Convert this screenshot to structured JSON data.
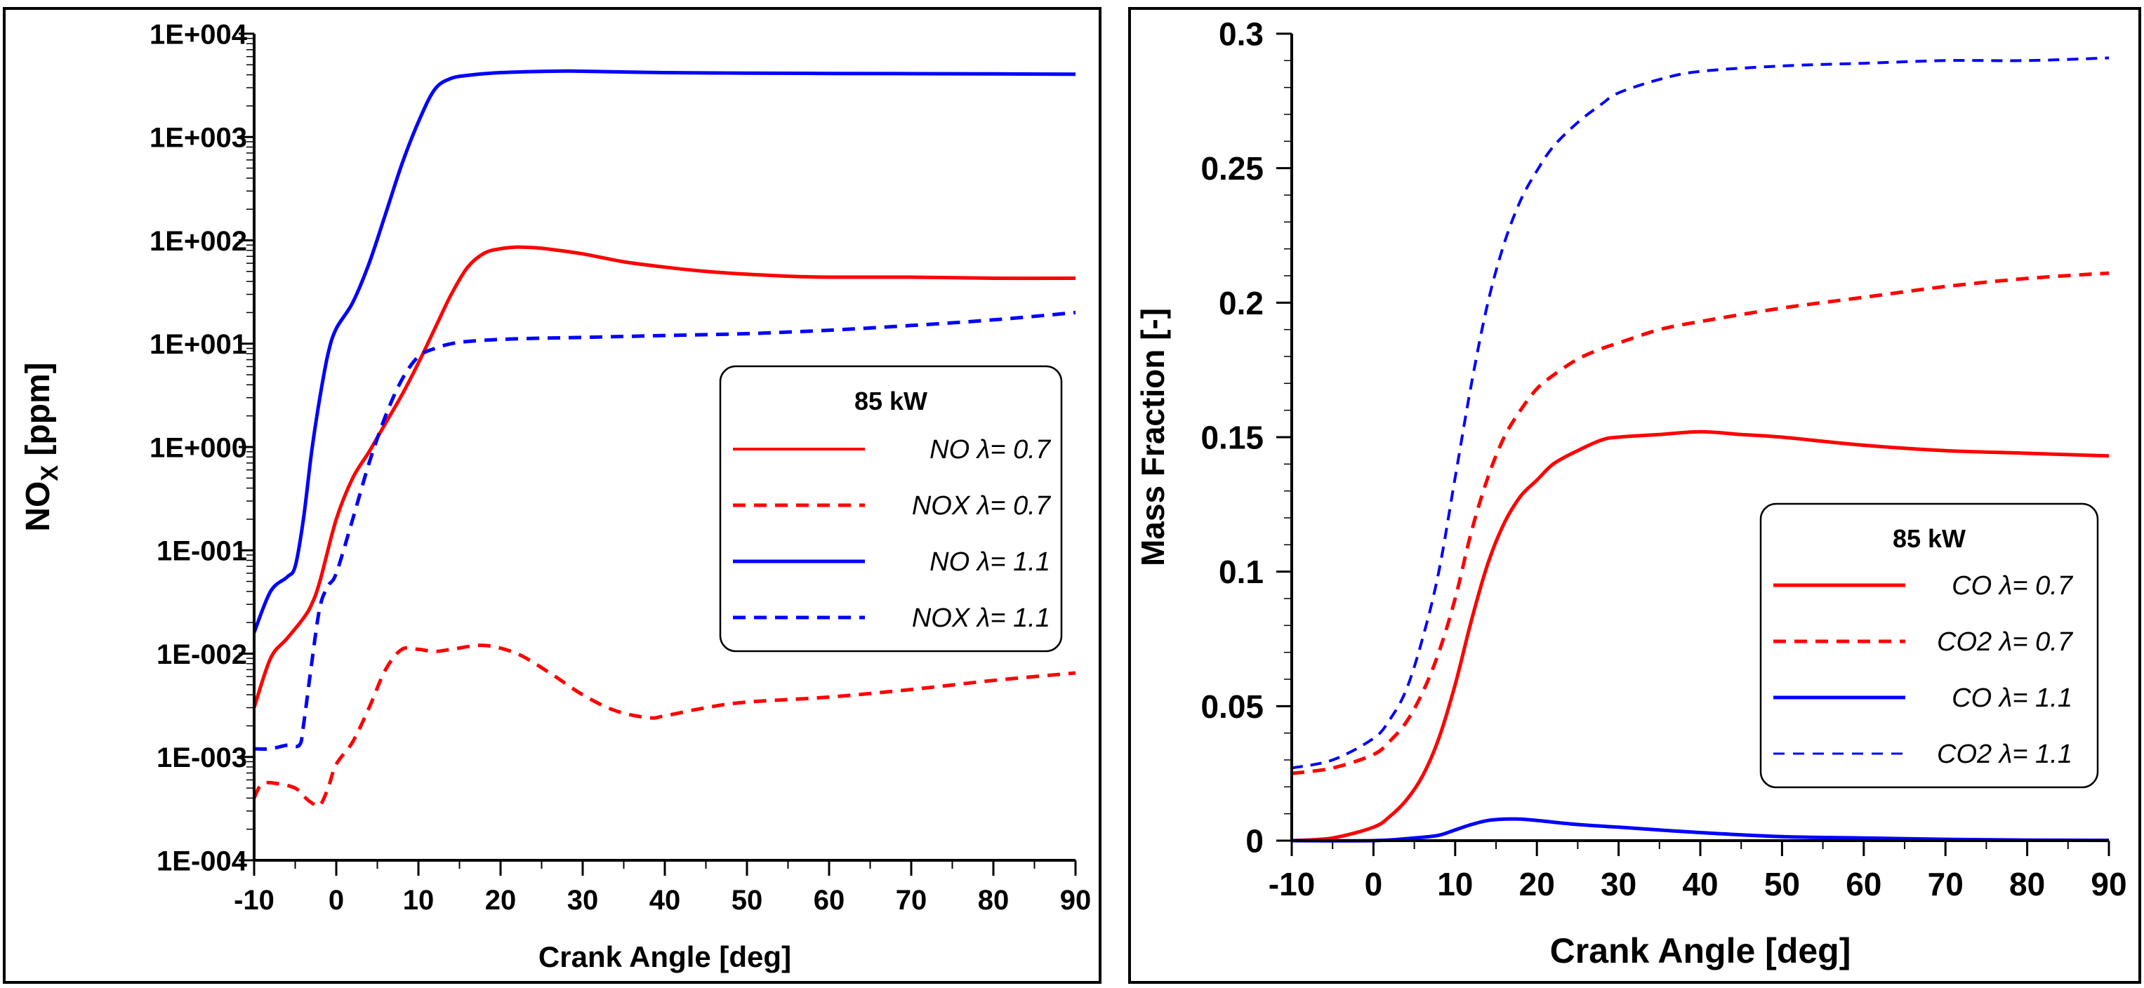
{
  "chart_data": [
    {
      "type": "line",
      "id": "left",
      "xlabel": "Crank Angle [deg]",
      "ylabel_main": "NO",
      "ylabel_sub": "X",
      "ylabel_rest": " [ppm]",
      "yscale": "log",
      "xlim": [
        -10,
        90
      ],
      "ylim": [
        0.0001,
        10000
      ],
      "xticks": [
        -10,
        0,
        10,
        20,
        30,
        40,
        50,
        60,
        70,
        80,
        90
      ],
      "xtick_labels": [
        "-10",
        "0",
        "10",
        "20",
        "30",
        "40",
        "50",
        "60",
        "70",
        "80",
        "90"
      ],
      "yticks": [
        0.0001,
        0.001,
        0.01,
        0.1,
        1,
        10,
        100,
        1000,
        10000
      ],
      "ytick_labels": [
        "1E-004",
        "1E-003",
        "1E-002",
        "1E-001",
        "1E+000",
        "1E+001",
        "1E+002",
        "1E+003",
        "1E+004"
      ],
      "legend": {
        "title": "85 kW",
        "location": "right-middle",
        "entries": [
          "NO λ= 0.7",
          "NOX λ= 0.7",
          "NO λ= 1.1",
          "NOX λ= 1.1"
        ]
      },
      "series": [
        {
          "name": "NO λ= 0.7",
          "color": "#ff0000",
          "style": "solid",
          "x": [
            -10,
            -8,
            -6,
            -4,
            -3,
            -2,
            0,
            2,
            4,
            6,
            8,
            10,
            12,
            14,
            16,
            18,
            20,
            22,
            24,
            26,
            30,
            35,
            40,
            45,
            50,
            55,
            60,
            70,
            80,
            90
          ],
          "y": [
            0.003,
            0.009,
            0.014,
            0.022,
            0.03,
            0.05,
            0.2,
            0.5,
            0.9,
            1.7,
            3.2,
            6.5,
            14,
            30,
            55,
            75,
            83,
            86,
            85,
            82,
            74,
            62,
            55,
            50,
            47,
            45,
            44,
            44,
            43,
            43
          ]
        },
        {
          "name": "NOX λ= 0.7",
          "color": "#ff0000",
          "style": "dashed",
          "x": [
            -10,
            -9,
            -7,
            -5,
            -4,
            -3,
            -2,
            -1,
            0,
            2,
            4,
            6,
            8,
            10,
            12,
            14,
            18,
            22,
            26,
            30,
            34,
            38,
            40,
            45,
            50,
            60,
            70,
            80,
            90
          ],
          "y": [
            0.0004,
            0.00055,
            0.00055,
            0.0005,
            0.00042,
            0.00036,
            0.00034,
            0.0005,
            0.00085,
            0.0014,
            0.003,
            0.007,
            0.011,
            0.011,
            0.0105,
            0.011,
            0.012,
            0.01,
            0.0065,
            0.004,
            0.0028,
            0.0024,
            0.0025,
            0.003,
            0.0034,
            0.0038,
            0.0045,
            0.0055,
            0.0065
          ]
        },
        {
          "name": "NO λ= 1.1",
          "color": "#0000ff",
          "style": "solid",
          "x": [
            -10,
            -8,
            -6,
            -5,
            -4,
            -3,
            -2,
            -1,
            0,
            2,
            4,
            6,
            8,
            10,
            12,
            14,
            16,
            18,
            20,
            24,
            28,
            30,
            40,
            50,
            60,
            70,
            80,
            90
          ],
          "y": [
            0.016,
            0.04,
            0.055,
            0.07,
            0.2,
            0.9,
            3,
            8,
            14,
            25,
            60,
            180,
            550,
            1400,
            2900,
            3700,
            3950,
            4100,
            4200,
            4300,
            4350,
            4330,
            4200,
            4150,
            4120,
            4100,
            4080,
            4050
          ]
        },
        {
          "name": "NOX λ= 1.1",
          "color": "#0000ff",
          "style": "dashed",
          "x": [
            -10,
            -8,
            -6,
            -4.5,
            -4,
            -3,
            -2,
            -1,
            0,
            2,
            4,
            6,
            8,
            10,
            12,
            14,
            16,
            20,
            25,
            30,
            40,
            50,
            60,
            70,
            80,
            90
          ],
          "y": [
            0.0012,
            0.0012,
            0.0013,
            0.0013,
            0.002,
            0.008,
            0.028,
            0.045,
            0.06,
            0.2,
            0.7,
            2,
            4.5,
            7.5,
            9,
            10,
            10.5,
            11,
            11.3,
            11.5,
            12,
            12.5,
            13.5,
            15,
            17,
            20
          ]
        }
      ]
    },
    {
      "type": "line",
      "id": "right",
      "xlabel": "Crank Angle [deg]",
      "ylabel": "Mass Fraction [-]",
      "yscale": "linear",
      "xlim": [
        -10,
        90
      ],
      "ylim": [
        0,
        0.3
      ],
      "xticks": [
        -10,
        0,
        10,
        20,
        30,
        40,
        50,
        60,
        70,
        80,
        90
      ],
      "xtick_labels": [
        "-10",
        "0",
        "10",
        "20",
        "30",
        "40",
        "50",
        "60",
        "70",
        "80",
        "90"
      ],
      "yticks": [
        0,
        0.05,
        0.1,
        0.15,
        0.2,
        0.25,
        0.3
      ],
      "ytick_labels": [
        "0",
        "0.05",
        "0.1",
        "0.15",
        "0.2",
        "0.25",
        "0.3"
      ],
      "legend": {
        "title": "85 kW",
        "location": "bottom-right",
        "entries": [
          "CO λ= 0.7",
          "CO2 λ= 0.7",
          "CO λ= 1.1",
          "CO2 λ= 1.1"
        ]
      },
      "series": [
        {
          "name": "CO λ= 0.7",
          "color": "#ff0000",
          "style": "solid",
          "x": [
            -10,
            -5,
            0,
            2,
            4,
            6,
            8,
            10,
            12,
            14,
            16,
            18,
            20,
            22,
            25,
            28,
            30,
            35,
            40,
            45,
            50,
            60,
            70,
            80,
            90
          ],
          "y": [
            0,
            0.001,
            0.005,
            0.009,
            0.015,
            0.024,
            0.038,
            0.058,
            0.082,
            0.103,
            0.118,
            0.128,
            0.134,
            0.14,
            0.145,
            0.149,
            0.15,
            0.151,
            0.152,
            0.151,
            0.15,
            0.147,
            0.145,
            0.144,
            0.143
          ]
        },
        {
          "name": "CO2 λ= 0.7",
          "color": "#ff0000",
          "style": "dashed",
          "x": [
            -10,
            -5,
            0,
            2,
            4,
            6,
            8,
            10,
            12,
            14,
            16,
            18,
            20,
            22,
            25,
            28,
            30,
            35,
            40,
            50,
            60,
            70,
            80,
            90
          ],
          "y": [
            0.025,
            0.027,
            0.032,
            0.037,
            0.044,
            0.055,
            0.07,
            0.09,
            0.115,
            0.135,
            0.15,
            0.16,
            0.168,
            0.173,
            0.179,
            0.183,
            0.185,
            0.19,
            0.193,
            0.198,
            0.202,
            0.206,
            0.209,
            0.211
          ]
        },
        {
          "name": "CO λ= 1.1",
          "color": "#0000ff",
          "style": "solid",
          "x": [
            -10,
            0,
            5,
            8,
            10,
            12,
            14,
            16,
            18,
            20,
            25,
            30,
            40,
            50,
            60,
            70,
            80,
            90
          ],
          "y": [
            0,
            0,
            0.001,
            0.002,
            0.004,
            0.006,
            0.0075,
            0.008,
            0.008,
            0.0075,
            0.006,
            0.005,
            0.003,
            0.0015,
            0.001,
            0.0005,
            0.0002,
            0.0001
          ]
        },
        {
          "name": "CO2 λ= 1.1",
          "color": "#0000ff",
          "style": "dashed",
          "x": [
            -10,
            -5,
            0,
            2,
            4,
            6,
            8,
            10,
            12,
            14,
            16,
            18,
            20,
            22,
            25,
            28,
            30,
            35,
            40,
            50,
            60,
            70,
            80,
            90
          ],
          "y": [
            0.027,
            0.03,
            0.038,
            0.045,
            0.056,
            0.075,
            0.1,
            0.135,
            0.17,
            0.2,
            0.222,
            0.238,
            0.249,
            0.258,
            0.267,
            0.274,
            0.278,
            0.283,
            0.286,
            0.288,
            0.289,
            0.29,
            0.29,
            0.291
          ]
        }
      ]
    }
  ]
}
